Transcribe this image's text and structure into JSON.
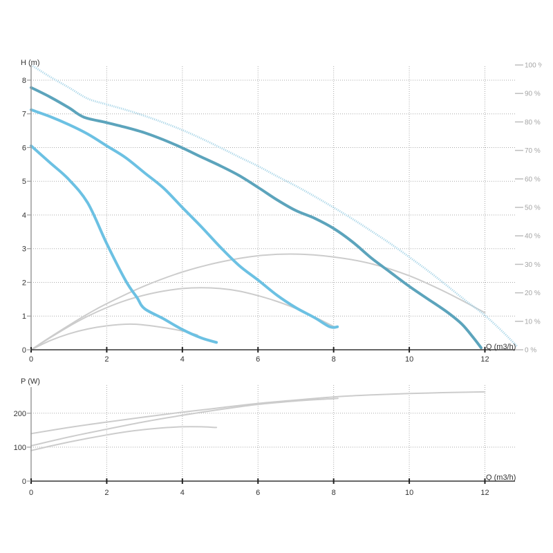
{
  "chart_data": [
    {
      "type": "line",
      "ylabel": "H (m)",
      "xlabel": "Q (m3/h)",
      "xlim": [
        0,
        12.85
      ],
      "ylim": [
        0,
        8.45
      ],
      "xticks": [
        0,
        2,
        4,
        6,
        8,
        10,
        12
      ],
      "yticks": [
        0,
        1,
        2,
        3,
        4,
        5,
        6,
        7,
        8
      ],
      "y2lim": [
        0,
        100
      ],
      "y2ticks": [
        0,
        10,
        20,
        30,
        40,
        50,
        60,
        70,
        80,
        90,
        100
      ],
      "y2ticklabels": [
        "0 %",
        "10 %",
        "20 %",
        "30 %",
        "40 %",
        "50 %",
        "60 %",
        "70 %",
        "80 %",
        "90 %",
        "100 %"
      ],
      "grid": true,
      "series": [
        {
          "axis": "right",
          "color": "#cccccc",
          "line_style": "thin",
          "points": [
            [
              0,
              0
            ],
            [
              0.5,
              3.2
            ],
            [
              1,
              5.6
            ],
            [
              1.5,
              7.3
            ],
            [
              2,
              8.4
            ],
            [
              2.6,
              9.0
            ],
            [
              3,
              8.7
            ],
            [
              3.5,
              7.8
            ],
            [
              4,
              6.6
            ],
            [
              4.4,
              5.2
            ]
          ]
        },
        {
          "axis": "right",
          "color": "#cccccc",
          "line_style": "thin",
          "points": [
            [
              0,
              0
            ],
            [
              0.5,
              4.2
            ],
            [
              1,
              8.2
            ],
            [
              1.5,
              11.8
            ],
            [
              2,
              14.8
            ],
            [
              2.5,
              17.3
            ],
            [
              3,
              19.2
            ],
            [
              3.5,
              20.6
            ],
            [
              4,
              21.5
            ],
            [
              4.5,
              21.8
            ],
            [
              5,
              21.5
            ],
            [
              5.5,
              20.6
            ],
            [
              6,
              19.0
            ],
            [
              6.5,
              17.0
            ],
            [
              7,
              14.5
            ],
            [
              7.5,
              11.5
            ],
            [
              8,
              8.2
            ]
          ]
        },
        {
          "axis": "right",
          "color": "#cccccc",
          "line_style": "thin",
          "points": [
            [
              0,
              0
            ],
            [
              0.5,
              4.4
            ],
            [
              1,
              8.6
            ],
            [
              1.5,
              12.6
            ],
            [
              2,
              16.2
            ],
            [
              3,
              22.4
            ],
            [
              4,
              27.3
            ],
            [
              5,
              30.8
            ],
            [
              6,
              33.0
            ],
            [
              7,
              33.6
            ],
            [
              8,
              32.6
            ],
            [
              9,
              30.2
            ],
            [
              10,
              26.0
            ],
            [
              11,
              20.0
            ],
            [
              12,
              13.0
            ]
          ]
        },
        {
          "axis": "left",
          "color": "#aad6e8",
          "line_style": "dotted",
          "points": [
            [
              0,
              8.45
            ],
            [
              0.5,
              8.1
            ],
            [
              1,
              7.78
            ],
            [
              1.5,
              7.45
            ],
            [
              2,
              7.28
            ],
            [
              2.5,
              7.12
            ],
            [
              3,
              6.94
            ],
            [
              3.5,
              6.74
            ],
            [
              4,
              6.52
            ],
            [
              4.5,
              6.27
            ],
            [
              5,
              6.0
            ],
            [
              5.5,
              5.72
            ],
            [
              6,
              5.45
            ],
            [
              6.5,
              5.15
            ],
            [
              7,
              4.86
            ],
            [
              7.5,
              4.55
            ],
            [
              8,
              4.22
            ],
            [
              8.5,
              3.88
            ],
            [
              9,
              3.52
            ],
            [
              9.5,
              3.15
            ],
            [
              10,
              2.75
            ],
            [
              10.5,
              2.34
            ],
            [
              11,
              1.9
            ],
            [
              11.5,
              1.45
            ],
            [
              12,
              1.02
            ],
            [
              12.5,
              0.5
            ],
            [
              12.85,
              0.1
            ]
          ]
        },
        {
          "axis": "left",
          "color": "#5ca4bc",
          "line_style": "thick",
          "points": [
            [
              0,
              7.78
            ],
            [
              0.5,
              7.5
            ],
            [
              1,
              7.18
            ],
            [
              1.4,
              6.9
            ],
            [
              2,
              6.74
            ],
            [
              2.5,
              6.6
            ],
            [
              3,
              6.44
            ],
            [
              3.5,
              6.23
            ],
            [
              4,
              5.99
            ],
            [
              4.5,
              5.72
            ],
            [
              5,
              5.46
            ],
            [
              5.5,
              5.17
            ],
            [
              6,
              4.82
            ],
            [
              6.5,
              4.45
            ],
            [
              7,
              4.13
            ],
            [
              7.5,
              3.9
            ],
            [
              8,
              3.6
            ],
            [
              8.5,
              3.2
            ],
            [
              9,
              2.72
            ],
            [
              9.5,
              2.3
            ],
            [
              10,
              1.88
            ],
            [
              10.5,
              1.5
            ],
            [
              11,
              1.12
            ],
            [
              11.4,
              0.75
            ],
            [
              11.7,
              0.35
            ],
            [
              11.9,
              0.06
            ]
          ]
        },
        {
          "axis": "left",
          "color": "#6cc1e3",
          "line_style": "thick",
          "points": [
            [
              0,
              7.12
            ],
            [
              0.5,
              6.92
            ],
            [
              1,
              6.68
            ],
            [
              1.5,
              6.4
            ],
            [
              2,
              6.05
            ],
            [
              2.5,
              5.7
            ],
            [
              3,
              5.25
            ],
            [
              3.5,
              4.8
            ],
            [
              4,
              4.22
            ],
            [
              4.5,
              3.65
            ],
            [
              5,
              3.05
            ],
            [
              5.5,
              2.5
            ],
            [
              6,
              2.07
            ],
            [
              6.5,
              1.62
            ],
            [
              7,
              1.25
            ],
            [
              7.5,
              0.95
            ],
            [
              7.9,
              0.68
            ],
            [
              8.1,
              0.68
            ]
          ]
        },
        {
          "axis": "left",
          "color": "#6cc1e3",
          "line_style": "thick",
          "points": [
            [
              0,
              6.05
            ],
            [
              0.5,
              5.55
            ],
            [
              1,
              5.05
            ],
            [
              1.5,
              4.35
            ],
            [
              2,
              3.15
            ],
            [
              2.5,
              2.05
            ],
            [
              2.8,
              1.55
            ],
            [
              3,
              1.22
            ],
            [
              3.5,
              0.92
            ],
            [
              4,
              0.6
            ],
            [
              4.5,
              0.35
            ],
            [
              4.9,
              0.22
            ]
          ]
        }
      ]
    },
    {
      "type": "line",
      "ylabel": "P (W)",
      "xlabel": "Q (m3/h)",
      "xlim": [
        0,
        12.85
      ],
      "ylim": [
        0,
        277
      ],
      "xticks": [
        0,
        2,
        4,
        6,
        8,
        10,
        12
      ],
      "yticks": [
        0,
        100,
        200
      ],
      "grid": true,
      "series": [
        {
          "axis": "left",
          "color": "#cccccc",
          "line_style": "thin",
          "points": [
            [
              0,
              140
            ],
            [
              1,
              158
            ],
            [
              2,
              174
            ],
            [
              3,
              189
            ],
            [
              4,
              203
            ],
            [
              5,
              216
            ],
            [
              6,
              229
            ],
            [
              7,
              239
            ],
            [
              8,
              248
            ],
            [
              9,
              254
            ],
            [
              10,
              258
            ],
            [
              11,
              261
            ],
            [
              12,
              263
            ]
          ]
        },
        {
          "axis": "left",
          "color": "#cccccc",
          "line_style": "thin",
          "points": [
            [
              0,
              104
            ],
            [
              1,
              130
            ],
            [
              2,
              153
            ],
            [
              3,
              175
            ],
            [
              4,
              194
            ],
            [
              5,
              211
            ],
            [
              6,
              226
            ],
            [
              7,
              236
            ],
            [
              8,
              243
            ],
            [
              8.1,
              244
            ]
          ]
        },
        {
          "axis": "left",
          "color": "#cccccc",
          "line_style": "thin",
          "points": [
            [
              0,
              90
            ],
            [
              0.5,
              103
            ],
            [
              1,
              115
            ],
            [
              1.5,
              126
            ],
            [
              2,
              136
            ],
            [
              2.5,
              145
            ],
            [
              3,
              152
            ],
            [
              3.5,
              157
            ],
            [
              4,
              160
            ],
            [
              4.5,
              160
            ],
            [
              4.9,
              158
            ]
          ]
        }
      ]
    }
  ]
}
